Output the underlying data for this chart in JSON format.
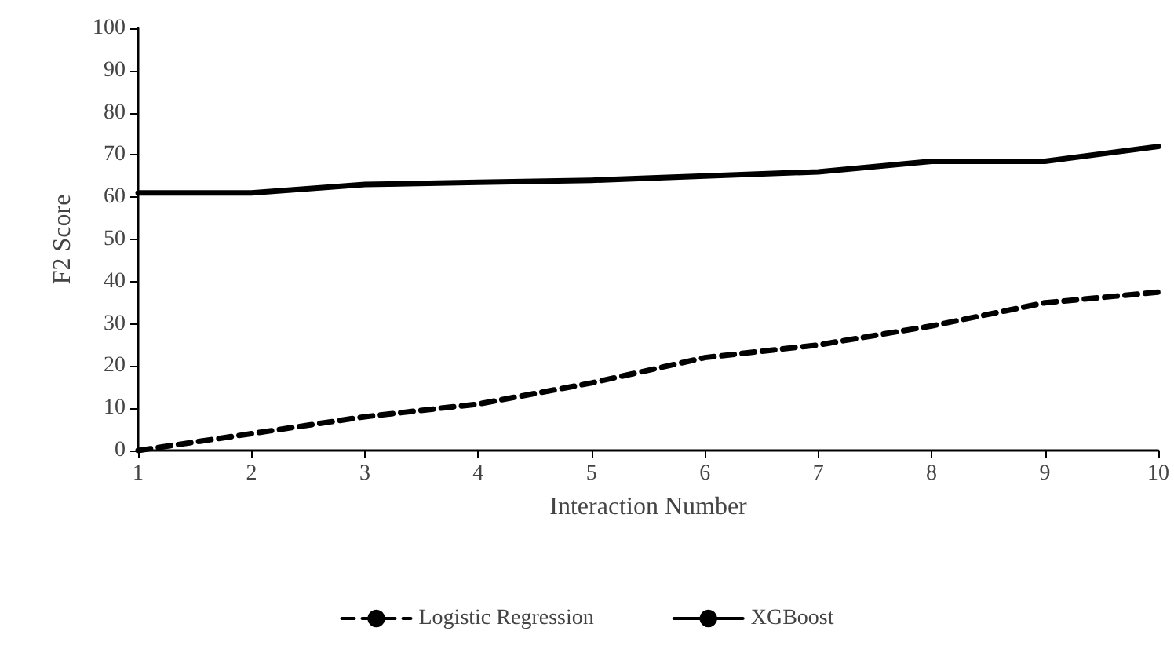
{
  "chart_data": {
    "type": "line",
    "xlabel": "Interaction Number",
    "ylabel": "F2 Score",
    "x": [
      1,
      2,
      3,
      4,
      5,
      6,
      7,
      8,
      9,
      10
    ],
    "series": [
      {
        "name": "Logistic Regression",
        "color": "#000000",
        "line_style": "dashed",
        "values": [
          0,
          4,
          8,
          11,
          16,
          22,
          25,
          29.5,
          35,
          37.5
        ]
      },
      {
        "name": "XGBoost",
        "color": "#000000",
        "line_style": "solid",
        "values": [
          61,
          61,
          63,
          63.5,
          64,
          65,
          66,
          68.5,
          68.5,
          72
        ]
      }
    ],
    "xlim": [
      1,
      10
    ],
    "xticks": [
      1,
      2,
      3,
      4,
      5,
      6,
      7,
      8,
      9,
      10
    ],
    "ylim": [
      0,
      100
    ],
    "yticks": [
      0,
      10,
      20,
      30,
      40,
      50,
      60,
      70,
      80,
      90,
      100
    ],
    "grid": false,
    "legend": "bottom",
    "marker": "none"
  }
}
